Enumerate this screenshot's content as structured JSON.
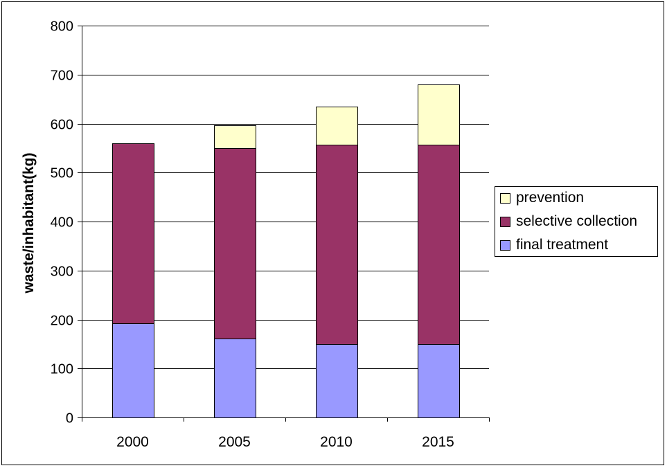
{
  "chart_data": {
    "type": "bar",
    "stacked": true,
    "title": "",
    "xlabel": "",
    "ylabel": "waste/inhabitant(kg)",
    "categories": [
      "2000",
      "2005",
      "2010",
      "2015"
    ],
    "ylim": [
      0,
      800
    ],
    "yticks": [
      0,
      100,
      200,
      300,
      400,
      500,
      600,
      700,
      800
    ],
    "grid": true,
    "legend_position": "right",
    "series": [
      {
        "name": "final treatment",
        "color": "#9999ff",
        "values": [
          192,
          161,
          150,
          150
        ]
      },
      {
        "name": "selective collection",
        "color": "#993366",
        "values": [
          368,
          389,
          407,
          407
        ]
      },
      {
        "name": "prevention",
        "color": "#ffffcc",
        "values": [
          0,
          47,
          78,
          123
        ]
      }
    ],
    "legend_order": [
      "prevention",
      "selective collection",
      "final treatment"
    ]
  }
}
